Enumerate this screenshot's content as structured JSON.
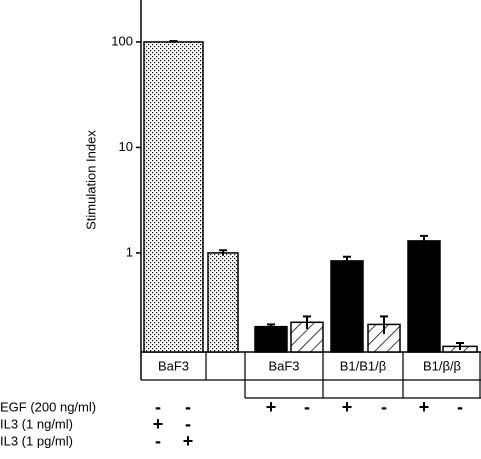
{
  "chart_data": {
    "type": "bar",
    "ylabel": "Stimulation Index",
    "log_scale": true,
    "ylim": [
      0.115,
      224
    ],
    "yticks": [
      1,
      10,
      100
    ],
    "values": [
      100,
      1,
      0.2,
      0.22,
      0.84,
      0.21,
      1.3,
      0.13
    ],
    "errors": [
      2,
      0.06,
      0.01,
      0.03,
      0.08,
      0.04,
      0.15,
      0.01
    ],
    "patterns": [
      "dots",
      "dots",
      "solid",
      "hatch",
      "solid",
      "hatch",
      "solid",
      "hatch"
    ],
    "color": "#000000",
    "groups": [
      "BaF3",
      "BaF3",
      "B1/B1/β",
      "B1/β/β"
    ],
    "conditions": [
      {
        "label": "EGF (200 ng/ml)",
        "signs": [
          "-",
          "-",
          "+",
          "-",
          "+",
          "-",
          "+",
          "-"
        ]
      },
      {
        "label": "IL3 (1 ng/ml)",
        "signs": [
          "+",
          "-"
        ]
      },
      {
        "label": "IL3 (1 pg/ml)",
        "signs": [
          "-",
          "+"
        ]
      }
    ]
  }
}
